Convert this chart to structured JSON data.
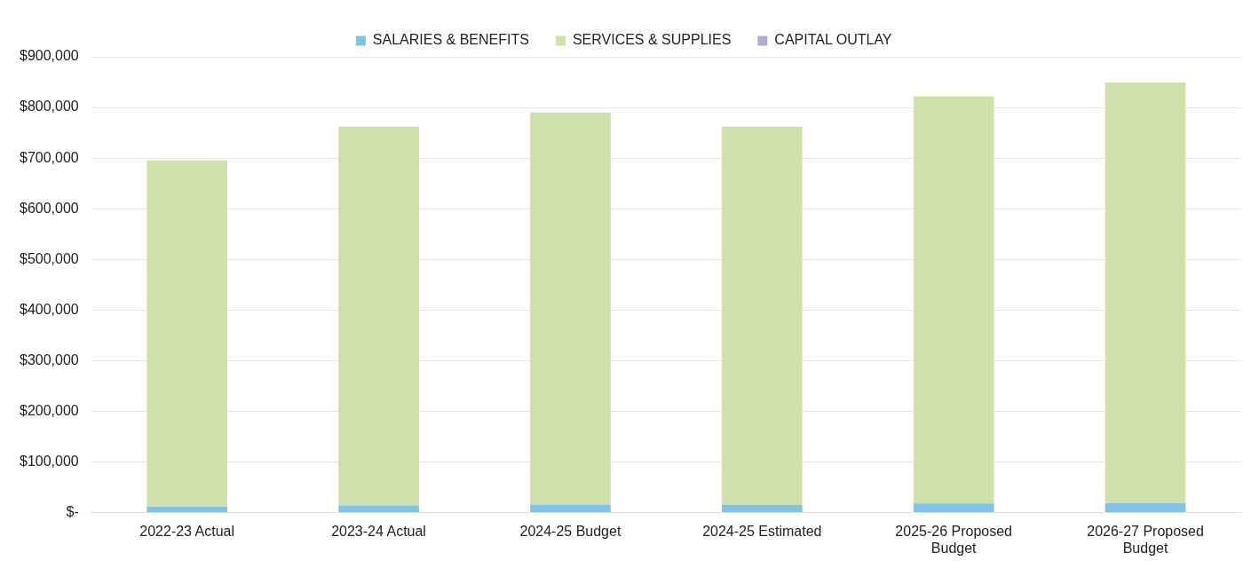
{
  "chart_data": {
    "type": "bar",
    "stacked": true,
    "legend": "top",
    "grid": "y",
    "categories": [
      "2022-23 Actual",
      "2023-24 Actual",
      "2024-25 Budget",
      "2024-25 Estimated",
      "2025-26 Proposed Budget",
      "2026-27 Proposed Budget"
    ],
    "series": [
      {
        "name": "SALARIES & BENEFITS",
        "color": "#7fc3ea",
        "values": [
          12000,
          14000,
          16000,
          15000,
          18000,
          19000
        ]
      },
      {
        "name": "SERVICES & SUPPLIES",
        "color": "#cfe0ab",
        "values": [
          684000,
          748000,
          774000,
          747000,
          804000,
          830000
        ]
      },
      {
        "name": "CAPITAL OUTLAY",
        "color": "#b1a9d6",
        "values": [
          0,
          0,
          0,
          0,
          0,
          0
        ]
      }
    ],
    "ylim": [
      0,
      900000
    ],
    "yticks": [
      {
        "value": 0,
        "label": "$-"
      },
      {
        "value": 100000,
        "label": "$100,000"
      },
      {
        "value": 200000,
        "label": "$200,000"
      },
      {
        "value": 300000,
        "label": "$300,000"
      },
      {
        "value": 400000,
        "label": "$400,000"
      },
      {
        "value": 500000,
        "label": "$500,000"
      },
      {
        "value": 600000,
        "label": "$600,000"
      },
      {
        "value": 700000,
        "label": "$700,000"
      },
      {
        "value": 800000,
        "label": "$800,000"
      },
      {
        "value": 900000,
        "label": "$900,000"
      }
    ]
  }
}
